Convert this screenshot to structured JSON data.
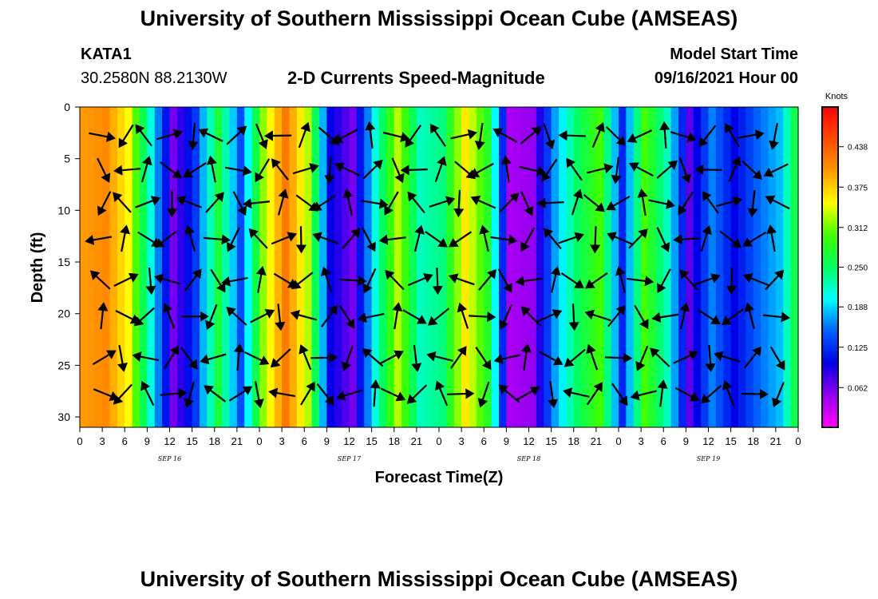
{
  "page": {
    "title_top": "University of Southern Mississippi Ocean Cube (AMSEAS)",
    "title_bottom": "University of Southern Mississippi Ocean Cube (AMSEAS)",
    "station": "KATA1",
    "coords": "30.2580N  88.2130W",
    "plot_title": "2-D Currents Speed-Magnitude",
    "model_label": "Model Start Time",
    "model_time": "09/16/2021 Hour 00"
  },
  "chart_data": {
    "type": "heatmap",
    "title": "2-D Currents Speed-Magnitude",
    "xlabel": "Forecast Time(Z)",
    "ylabel": "Depth (ft)",
    "x_ticks": [
      "0",
      "3",
      "6",
      "9",
      "12",
      "15",
      "18",
      "21",
      "0",
      "3",
      "6",
      "9",
      "12",
      "15",
      "18",
      "21",
      "0",
      "3",
      "6",
      "9",
      "12",
      "15",
      "18",
      "21",
      "0",
      "3",
      "6",
      "9",
      "12",
      "15",
      "18",
      "21",
      "0"
    ],
    "x_date_labels": [
      "SEP 16",
      "SEP 17",
      "SEP 18",
      "SEP 19"
    ],
    "y_ticks": [
      "0",
      "5",
      "10",
      "15",
      "20",
      "25",
      "30"
    ],
    "ylim": [
      0,
      31
    ],
    "colorbar": {
      "unit": "Knots",
      "ticks": [
        "0.438",
        "0.375",
        "0.312",
        "0.250",
        "0.188",
        "0.125",
        "0.062"
      ],
      "range": [
        0,
        0.5
      ],
      "colors": [
        "#ff00ff",
        "#9400f0",
        "#0000e8",
        "#0060ff",
        "#00ffff",
        "#00ff60",
        "#40ff00",
        "#ffff00",
        "#ff9a00",
        "#ff4a00",
        "#ff0000"
      ]
    },
    "speed_profile": [
      {
        "t": 0,
        "speed": 0.4
      },
      {
        "t": 3,
        "speed": 0.41
      },
      {
        "t": 6,
        "speed": 0.35
      },
      {
        "t": 9,
        "speed": 0.21
      },
      {
        "t": 12,
        "speed": 0.06
      },
      {
        "t": 15,
        "speed": 0.13
      },
      {
        "t": 18,
        "speed": 0.27
      },
      {
        "t": 21,
        "speed": 0.14
      },
      {
        "t": 24,
        "speed": 0.32
      },
      {
        "t": 27,
        "speed": 0.42
      },
      {
        "t": 30,
        "speed": 0.33
      },
      {
        "t": 33,
        "speed": 0.1
      },
      {
        "t": 36,
        "speed": 0.06
      },
      {
        "t": 39,
        "speed": 0.21
      },
      {
        "t": 42,
        "speed": 0.33
      },
      {
        "t": 45,
        "speed": 0.22
      },
      {
        "t": 48,
        "speed": 0.24
      },
      {
        "t": 51,
        "speed": 0.36
      },
      {
        "t": 54,
        "speed": 0.28
      },
      {
        "t": 57,
        "speed": 0.04
      },
      {
        "t": 60,
        "speed": 0.05
      },
      {
        "t": 63,
        "speed": 0.17
      },
      {
        "t": 66,
        "speed": 0.25
      },
      {
        "t": 69,
        "speed": 0.3
      },
      {
        "t": 72,
        "speed": 0.12
      },
      {
        "t": 75,
        "speed": 0.3
      },
      {
        "t": 78,
        "speed": 0.22
      },
      {
        "t": 81,
        "speed": 0.07
      },
      {
        "t": 84,
        "speed": 0.16
      },
      {
        "t": 87,
        "speed": 0.1
      },
      {
        "t": 90,
        "speed": 0.15
      },
      {
        "t": 93,
        "speed": 0.18
      },
      {
        "t": 96,
        "speed": 0.3
      }
    ],
    "arrow_depths_ft": [
      2,
      5.3,
      8.5,
      12,
      16,
      19.5,
      23.5,
      27
    ]
  }
}
